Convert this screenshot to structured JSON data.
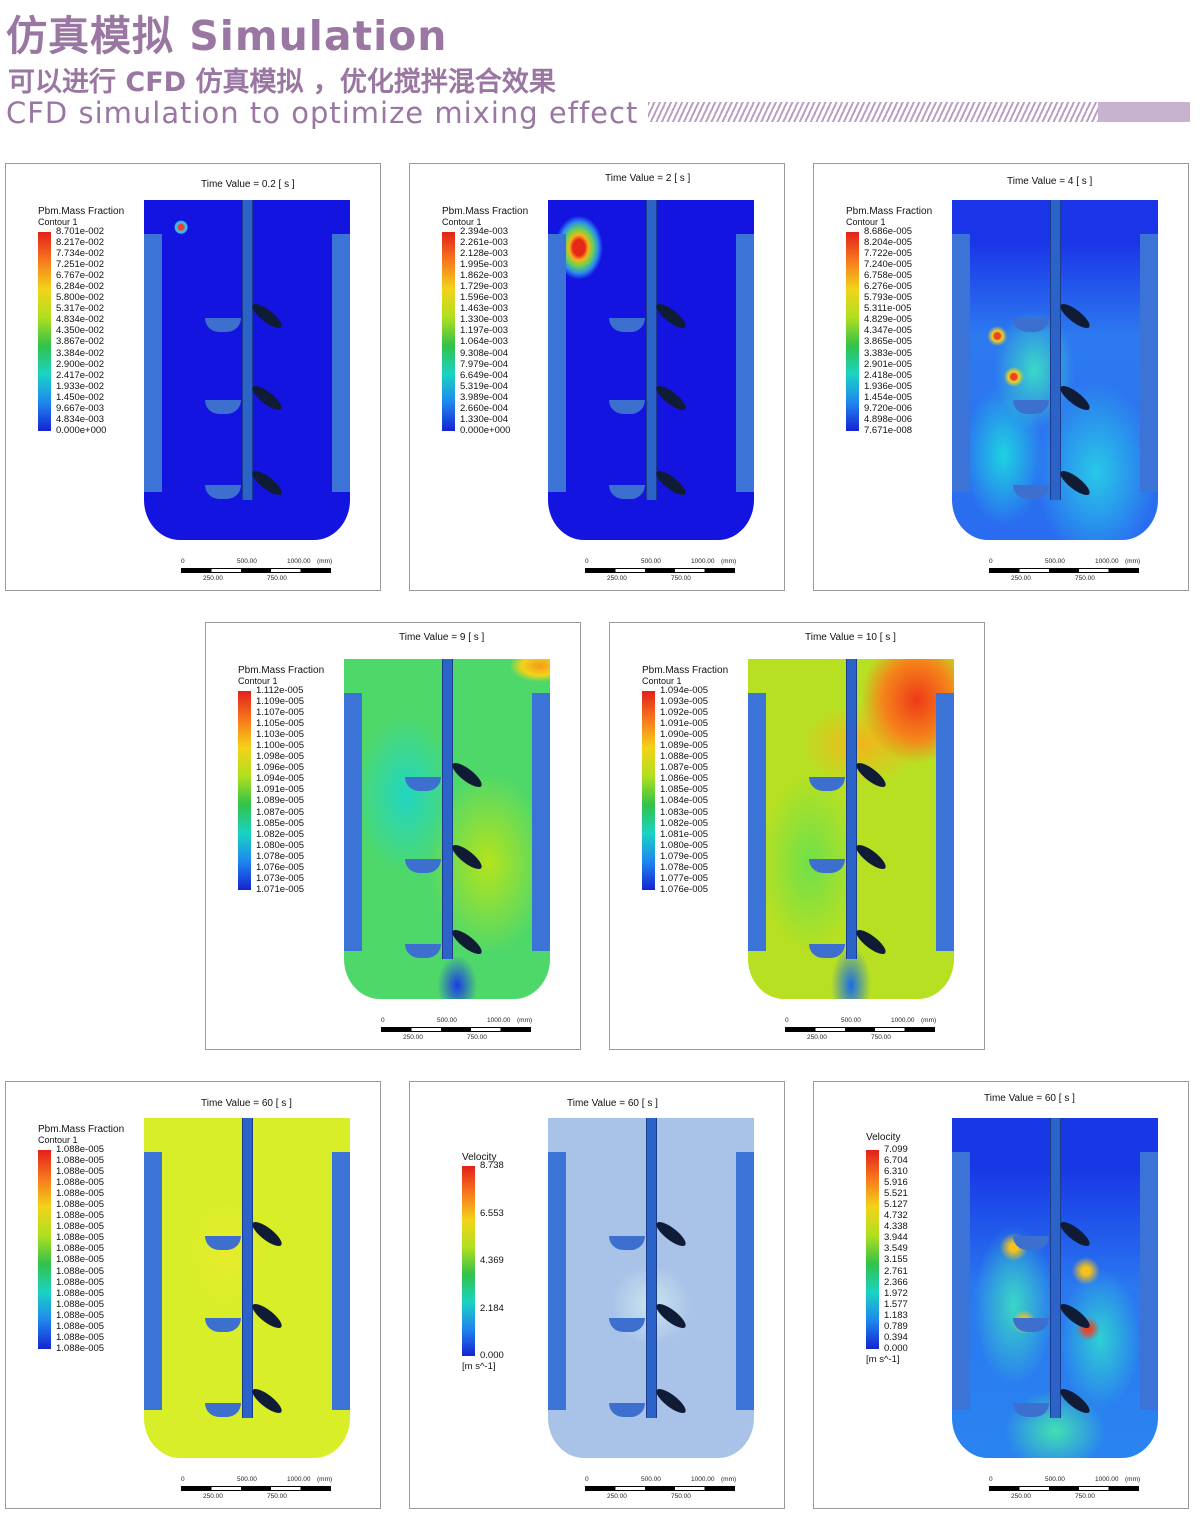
{
  "header": {
    "title": "仿真模拟 Simulation",
    "subtitle_cn": "可以进行 CFD 仿真模拟 ，优化搅拌混合效果",
    "subtitle_en": "CFD simulation to optimize mixing effect"
  },
  "scale_labels": {
    "top": [
      "0",
      "500.00",
      "1000.00",
      "(mm)"
    ],
    "bottom": [
      "250.00",
      "750.00"
    ]
  },
  "panels": [
    {
      "time_label": "Time Value = 0.2 [ s ]",
      "legend_title": "Pbm.Mass Fraction",
      "legend_sub": "Contour 1",
      "ticks": [
        "8.701e-002",
        "8.217e-002",
        "7.734e-002",
        "7.251e-002",
        "6.767e-002",
        "6.284e-002",
        "5.800e-002",
        "5.317e-002",
        "4.834e-002",
        "4.350e-002",
        "3.867e-002",
        "3.384e-002",
        "2.900e-002",
        "2.417e-002",
        "1.933e-002",
        "1.450e-002",
        "9.667e-003",
        "4.834e-003",
        "0.000e+000"
      ]
    },
    {
      "time_label": "Time Value = 2 [ s ]",
      "legend_title": "Pbm.Mass Fraction",
      "legend_sub": "Contour 1",
      "ticks": [
        "2.394e-003",
        "2.261e-003",
        "2.128e-003",
        "1.995e-003",
        "1.862e-003",
        "1.729e-003",
        "1.596e-003",
        "1.463e-003",
        "1.330e-003",
        "1.197e-003",
        "1.064e-003",
        "9.308e-004",
        "7.979e-004",
        "6.649e-004",
        "5.319e-004",
        "3.989e-004",
        "2.660e-004",
        "1.330e-004",
        "0.000e+000"
      ]
    },
    {
      "time_label": "Time Value = 4 [ s ]",
      "legend_title": "Pbm.Mass Fraction",
      "legend_sub": "Contour 1",
      "ticks": [
        "8.686e-005",
        "8.204e-005",
        "7.722e-005",
        "7.240e-005",
        "6.758e-005",
        "6.276e-005",
        "5.793e-005",
        "5.311e-005",
        "4.829e-005",
        "4.347e-005",
        "3.865e-005",
        "3.383e-005",
        "2.901e-005",
        "2.418e-005",
        "1.936e-005",
        "1.454e-005",
        "9.720e-006",
        "4.898e-006",
        "7.671e-008"
      ]
    },
    {
      "time_label": "Time Value = 9 [ s ]",
      "legend_title": "Pbm.Mass Fraction",
      "legend_sub": "Contour 1",
      "ticks": [
        "1.112e-005",
        "1.109e-005",
        "1.107e-005",
        "1.105e-005",
        "1.103e-005",
        "1.100e-005",
        "1.098e-005",
        "1.096e-005",
        "1.094e-005",
        "1.091e-005",
        "1.089e-005",
        "1.087e-005",
        "1.085e-005",
        "1.082e-005",
        "1.080e-005",
        "1.078e-005",
        "1.076e-005",
        "1.073e-005",
        "1.071e-005"
      ]
    },
    {
      "time_label": "Time Value = 10 [ s ]",
      "legend_title": "Pbm.Mass Fraction",
      "legend_sub": "Contour 1",
      "ticks": [
        "1.094e-005",
        "1.093e-005",
        "1.092e-005",
        "1.091e-005",
        "1.090e-005",
        "1.089e-005",
        "1.088e-005",
        "1.087e-005",
        "1.086e-005",
        "1.085e-005",
        "1.084e-005",
        "1.083e-005",
        "1.082e-005",
        "1.081e-005",
        "1.080e-005",
        "1.079e-005",
        "1.078e-005",
        "1.077e-005",
        "1.076e-005"
      ]
    },
    {
      "time_label": "Time Value = 60 [ s ]",
      "legend_title": "Pbm.Mass Fraction",
      "legend_sub": "Contour 1",
      "ticks": [
        "1.088e-005",
        "1.088e-005",
        "1.088e-005",
        "1.088e-005",
        "1.088e-005",
        "1.088e-005",
        "1.088e-005",
        "1.088e-005",
        "1.088e-005",
        "1.088e-005",
        "1.088e-005",
        "1.088e-005",
        "1.088e-005",
        "1.088e-005",
        "1.088e-005",
        "1.088e-005",
        "1.088e-005",
        "1.088e-005",
        "1.088e-005"
      ]
    },
    {
      "time_label": "Time Value = 60 [ s ]",
      "legend_title": "Velocity",
      "legend_sub": "",
      "ticks": [
        "8.738",
        "6.553",
        "4.369",
        "2.184",
        "0.000"
      ],
      "unit": "[m s^-1]"
    },
    {
      "time_label": "Time Value = 60 [ s ]",
      "legend_title": "Velocity",
      "legend_sub": "",
      "ticks": [
        "7.099",
        "6.704",
        "6.310",
        "5.916",
        "5.521",
        "5.127",
        "4.732",
        "4.338",
        "3.944",
        "3.549",
        "3.155",
        "2.761",
        "2.366",
        "1.972",
        "1.577",
        "1.183",
        "0.789",
        "0.394",
        "0.000"
      ],
      "unit": "[m s^-1]"
    }
  ]
}
